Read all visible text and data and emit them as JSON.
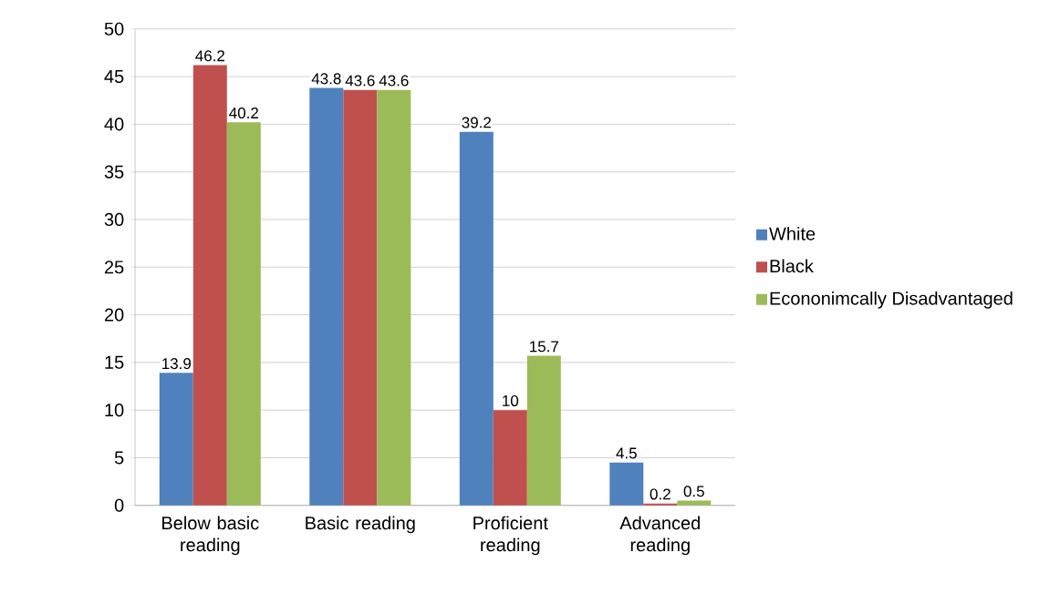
{
  "chart_data": {
    "type": "bar",
    "categories": [
      "Below basic reading",
      "Basic reading",
      "Proficient reading",
      "Advanced reading"
    ],
    "series": [
      {
        "name": "White",
        "color": "#4f81bd",
        "values": [
          13.9,
          43.8,
          39.2,
          4.5
        ]
      },
      {
        "name": "Black",
        "color": "#c0504d",
        "values": [
          46.2,
          43.6,
          10,
          0.2
        ]
      },
      {
        "name": "Econonimcally Disadvantaged",
        "color": "#9bbb59",
        "values": [
          40.2,
          43.6,
          15.7,
          0.5
        ]
      }
    ],
    "ylim": [
      0,
      50
    ],
    "yticks": [
      0,
      5,
      10,
      15,
      20,
      25,
      30,
      35,
      40,
      45,
      50
    ],
    "grid": "y",
    "legend": "right",
    "data_labels": true
  }
}
